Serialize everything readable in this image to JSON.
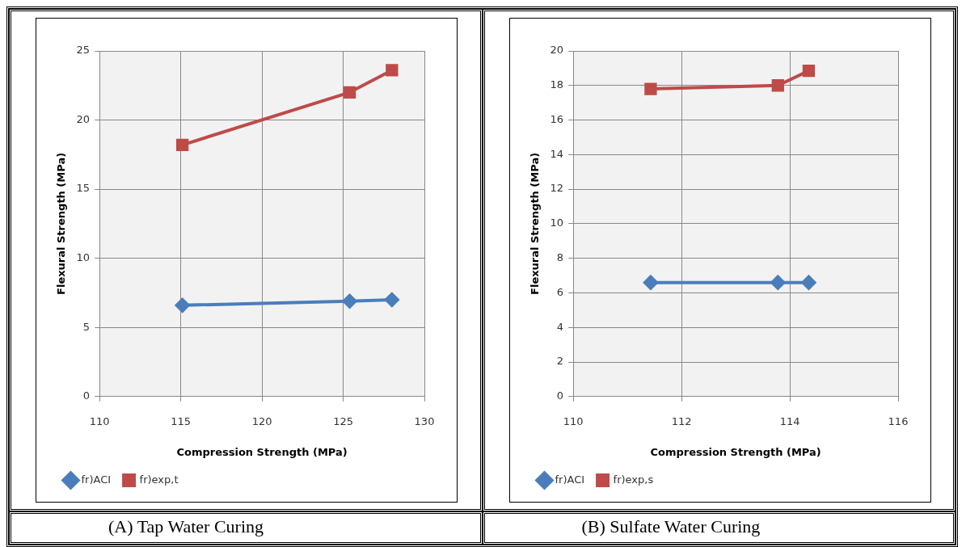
{
  "chart_data": [
    {
      "type": "line",
      "title": "(A) Tap Water Curing",
      "xlabel": "Compression Strength (MPa)",
      "ylabel": "Flexural Strength (MPa)",
      "xlim": [
        110,
        130
      ],
      "xticks": [
        110,
        115,
        120,
        125,
        130
      ],
      "ylim": [
        0,
        25
      ],
      "yticks": [
        0,
        5,
        10,
        15,
        20,
        25
      ],
      "grid": true,
      "legend": "bottom left",
      "line_style": "solid",
      "series": [
        {
          "name": "fr)ACI",
          "color": "#4a7ebb",
          "marker": "diamond",
          "x": [
            115.1,
            125.4,
            128.0
          ],
          "values": [
            6.6,
            6.9,
            7.0
          ]
        },
        {
          "name": "fr)exp,t",
          "color": "#be4b48",
          "marker": "square",
          "x": [
            115.1,
            125.4,
            128.0
          ],
          "values": [
            18.2,
            22.0,
            23.6
          ]
        }
      ]
    },
    {
      "type": "line",
      "title": "(B) Sulfate Water Curing",
      "xlabel": "Compression Strength (MPa)",
      "ylabel": "Flexural Strength (MPa)",
      "xlim": [
        110,
        116
      ],
      "xticks": [
        110,
        112,
        114,
        116
      ],
      "ylim": [
        0,
        20
      ],
      "yticks": [
        0,
        2,
        4,
        6,
        8,
        10,
        12,
        14,
        16,
        18,
        20
      ],
      "grid": true,
      "legend": "bottom left",
      "line_style": "solid",
      "series": [
        {
          "name": "fr)ACI",
          "color": "#4a7ebb",
          "marker": "diamond",
          "x": [
            111.43,
            113.78,
            114.35
          ],
          "values": [
            6.6,
            6.6,
            6.6
          ]
        },
        {
          "name": "fr)exp,s",
          "color": "#be4b48",
          "marker": "square",
          "x": [
            111.43,
            113.78,
            114.35
          ],
          "values": [
            17.8,
            18.0,
            18.85
          ]
        }
      ]
    }
  ]
}
